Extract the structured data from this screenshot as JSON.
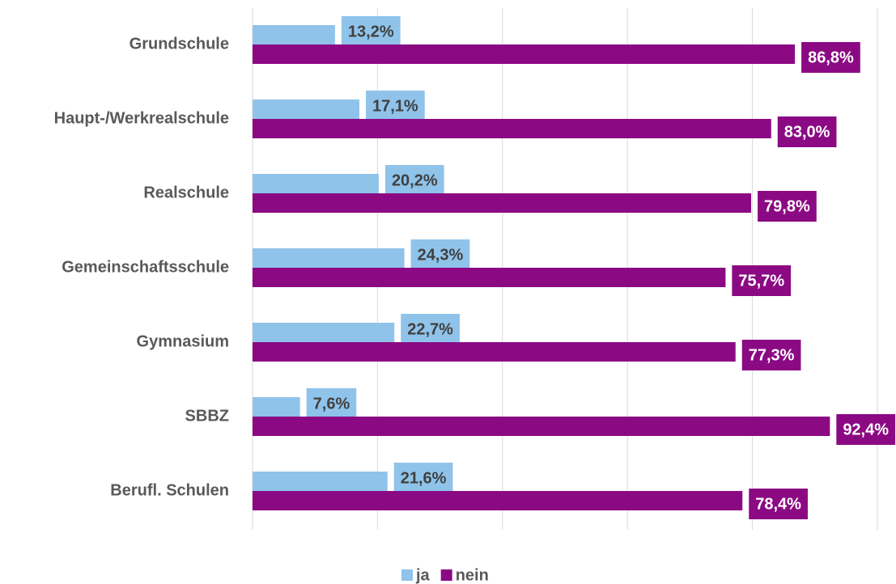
{
  "chart_data": {
    "type": "hbar",
    "categories": [
      "Grundschule",
      "Haupt-/Werkrealschule",
      "Realschule",
      "Gemeinschaftsschule",
      "Gymnasium",
      "SBBZ",
      "Berufl. Schulen"
    ],
    "series": [
      {
        "name": "ja",
        "color": "#8fc3ea",
        "values": [
          13.2,
          17.1,
          20.2,
          24.3,
          22.7,
          7.6,
          21.6
        ],
        "value_labels": [
          "13,2%",
          "17,1%",
          "20,2%",
          "24,3%",
          "22,7%",
          "7,6%",
          "21,6%"
        ]
      },
      {
        "name": "nein",
        "color": "#8b0a83",
        "values": [
          86.8,
          83.0,
          79.8,
          75.7,
          77.3,
          92.4,
          78.4
        ],
        "value_labels": [
          "86,8%",
          "83,0%",
          "79,8%",
          "75,7%",
          "77,3%",
          "92,4%",
          "78,4%"
        ]
      }
    ],
    "xlim": [
      0,
      100
    ],
    "xticks": [
      0,
      20,
      40,
      60,
      80,
      100
    ],
    "grid": true,
    "legend": "bottom"
  }
}
